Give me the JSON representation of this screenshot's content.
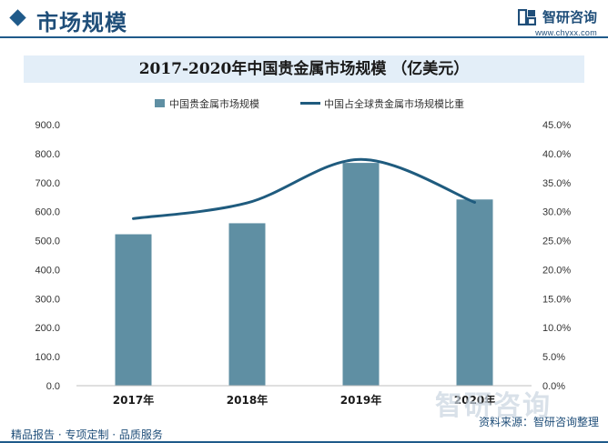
{
  "header": {
    "section_title": "市场规模",
    "brand_name": "智研咨询",
    "brand_url": "www.chyxx.com"
  },
  "footer": {
    "tagline": "精品报告 · 专项定制 · 品质服务",
    "watermark": "智研咨询",
    "source": "资料来源：智研咨询整理"
  },
  "colors": {
    "bar": "#5f8fa3",
    "line": "#1f5b7e",
    "accent": "#1f4e79"
  },
  "chart_data": {
    "type": "bar",
    "title": "2017-2020年中国贵金属市场规模 （亿美元）",
    "categories": [
      "2017年",
      "2018年",
      "2019年",
      "2020年"
    ],
    "series": [
      {
        "name": "中国贵金属市场规模",
        "type": "bar",
        "axis": "left",
        "values": [
          522,
          560,
          768,
          642
        ]
      },
      {
        "name": "中国占全球贵金属市场规模比重",
        "type": "line",
        "axis": "right",
        "values": [
          28.8,
          31.5,
          39.0,
          31.6
        ]
      }
    ],
    "ylim": [
      0,
      900
    ],
    "y_ticks": [
      "0.0",
      "100.0",
      "200.0",
      "300.0",
      "400.0",
      "500.0",
      "600.0",
      "700.0",
      "800.0",
      "900.0"
    ],
    "y2lim": [
      0,
      45
    ],
    "y2_ticks": [
      "0.0%",
      "5.0%",
      "10.0%",
      "15.0%",
      "20.0%",
      "25.0%",
      "30.0%",
      "35.0%",
      "40.0%",
      "45.0%"
    ],
    "legend_position": "top",
    "grid": false
  }
}
